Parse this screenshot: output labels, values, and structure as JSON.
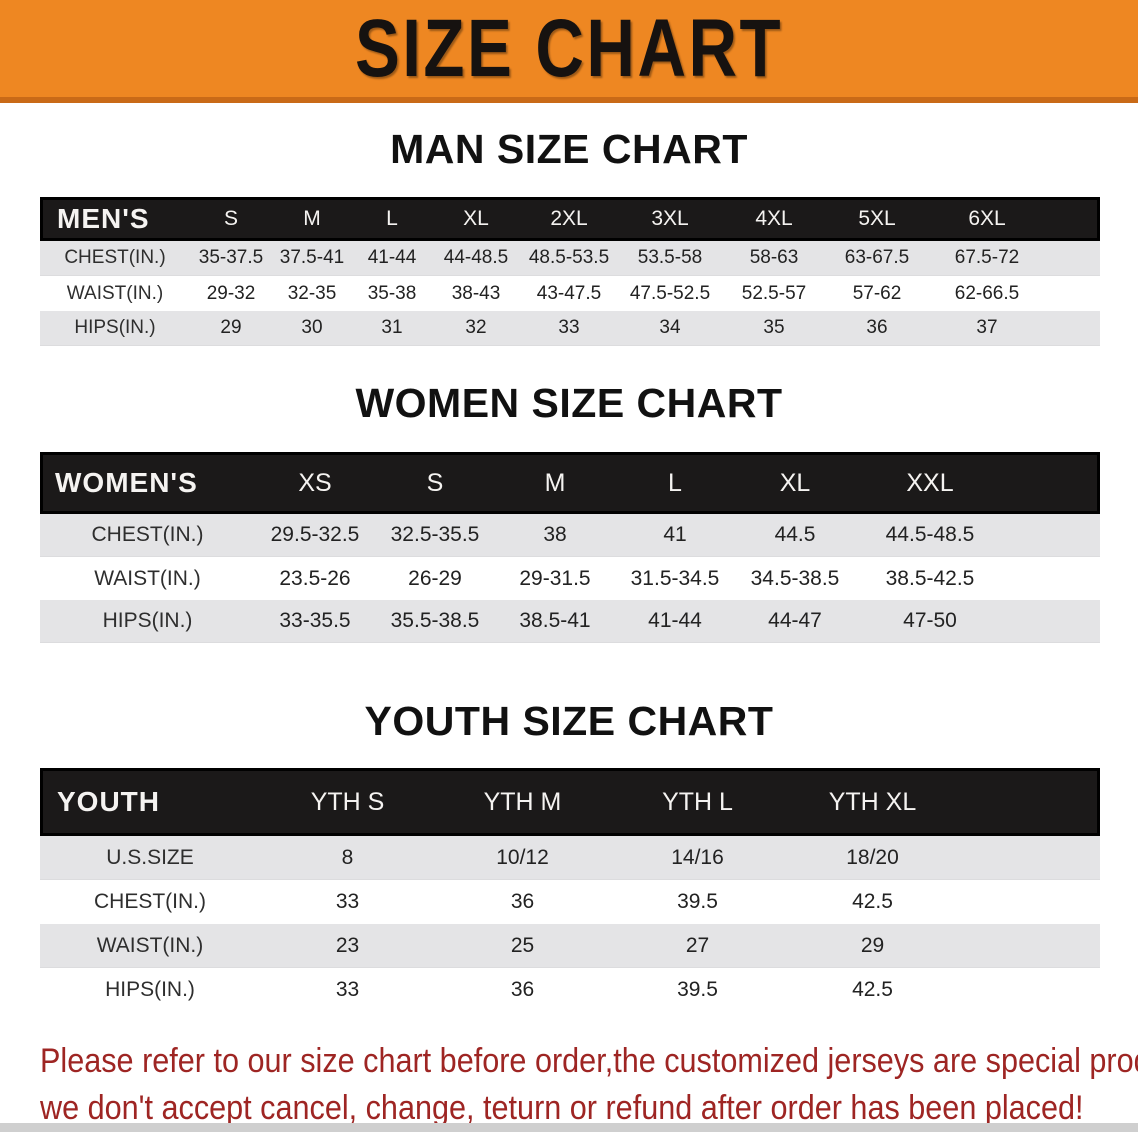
{
  "banner": {
    "title": "SIZE CHART"
  },
  "man": {
    "title": "MAN SIZE CHART",
    "table": {
      "header": {
        "label": "MEN'S",
        "sizes": [
          "S",
          "M",
          "L",
          "XL",
          "2XL",
          "3XL",
          "4XL",
          "5XL",
          "6XL"
        ]
      },
      "rows": [
        {
          "label": "CHEST(IN.)",
          "values": [
            "35-37.5",
            "37.5-41",
            "41-44",
            "44-48.5",
            "48.5-53.5",
            "53.5-58",
            "58-63",
            "63-67.5",
            "67.5-72"
          ]
        },
        {
          "label": "WAIST(IN.)",
          "values": [
            "29-32",
            "32-35",
            "35-38",
            "38-43",
            "43-47.5",
            "47.5-52.5",
            "52.5-57",
            "57-62",
            "62-66.5"
          ]
        },
        {
          "label": "HIPS(IN.)",
          "values": [
            "29",
            "30",
            "31",
            "32",
            "33",
            "34",
            "35",
            "36",
            "37"
          ]
        }
      ]
    }
  },
  "women": {
    "title": "WOMEN SIZE CHART",
    "table": {
      "header": {
        "label": "WOMEN'S",
        "sizes": [
          "XS",
          "S",
          "M",
          "L",
          "XL",
          "XXL"
        ]
      },
      "rows": [
        {
          "label": "CHEST(IN.)",
          "values": [
            "29.5-32.5",
            "32.5-35.5",
            "38",
            "41",
            "44.5",
            "44.5-48.5"
          ]
        },
        {
          "label": "WAIST(IN.)",
          "values": [
            "23.5-26",
            "26-29",
            "29-31.5",
            "31.5-34.5",
            "34.5-38.5",
            "38.5-42.5"
          ]
        },
        {
          "label": "HIPS(IN.)",
          "values": [
            "33-35.5",
            "35.5-38.5",
            "38.5-41",
            "41-44",
            "44-47",
            "47-50"
          ]
        }
      ]
    }
  },
  "youth": {
    "title": "YOUTH SIZE CHART",
    "table": {
      "header": {
        "label": "YOUTH",
        "sizes": [
          "YTH S",
          "YTH M",
          "YTH L",
          "YTH XL"
        ]
      },
      "rows": [
        {
          "label": "U.S.SIZE",
          "values": [
            "8",
            "10/12",
            "14/16",
            "18/20"
          ]
        },
        {
          "label": "CHEST(IN.)",
          "values": [
            "33",
            "36",
            "39.5",
            "42.5"
          ]
        },
        {
          "label": "WAIST(IN.)",
          "values": [
            "23",
            "25",
            "27",
            "29"
          ]
        },
        {
          "label": "HIPS(IN.)",
          "values": [
            "33",
            "36",
            "39.5",
            "42.5"
          ]
        }
      ]
    }
  },
  "disclaimer": {
    "line1": "Please refer to our size chart before order,the customized jerseys are special products,",
    "line2": "we don't accept cancel, change, teturn or refund after order has been placed!"
  },
  "colors": {
    "banner-orange": "#ee8722",
    "banner-edge": "#c96a17",
    "header-black": "#1b1919",
    "band-gray": "#e4e4e6",
    "disclaimer-red": "#9e2523"
  }
}
